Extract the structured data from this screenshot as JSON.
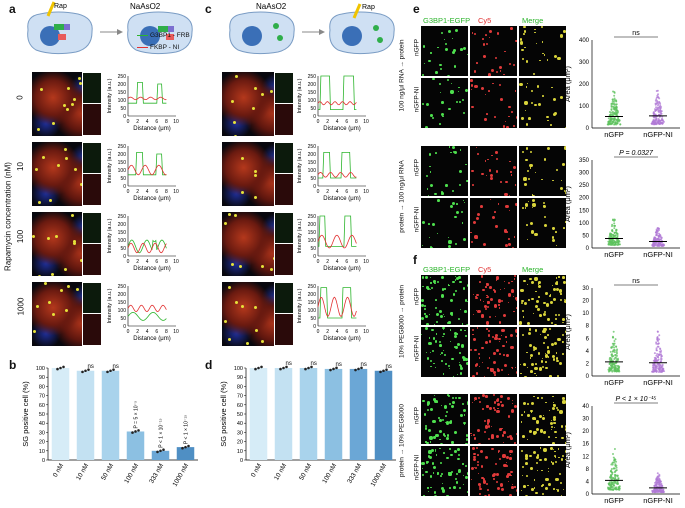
{
  "panels": {
    "a": "a",
    "b": "b",
    "c": "c",
    "d": "d",
    "e": "e",
    "f": "f"
  },
  "schematic": {
    "rap": "Rap",
    "naaso2_a": "NaAsO2",
    "naaso2_c": "NaAsO2",
    "legend_g3bp1": "G3BP1 - FRB",
    "legend_fkbp": "FKBP - NI"
  },
  "rapamycin_axis_label": "Rapamycin concentration (nM)",
  "row_labels": [
    "0",
    "10",
    "100",
    "1000"
  ],
  "profile": {
    "ylabel": "Intensity (a.u.)",
    "xlabel": "Distance (μm)",
    "yticks": [
      "0",
      "50",
      "100",
      "150",
      "200",
      "250"
    ],
    "xticks": [
      "0",
      "2",
      "4",
      "6",
      "8",
      "10"
    ],
    "colors": {
      "green": "#2db52d",
      "red": "#e23131"
    }
  },
  "bar_b": {
    "ylabel": "SG positive cell (%)",
    "categories": [
      "0 nM",
      "10 nM",
      "50 nM",
      "100 nM",
      "333 nM",
      "1000 nM"
    ],
    "values": [
      100,
      97,
      97,
      31,
      10,
      14
    ],
    "annotations": [
      "",
      "ns",
      "ns",
      "P = 5 × 10⁻⁵",
      "P < 1 × 10⁻¹⁵",
      "P < 1 × 10⁻¹⁵"
    ],
    "yticks": [
      "0",
      "10",
      "20",
      "30",
      "40",
      "50",
      "60",
      "70",
      "80",
      "90",
      "100"
    ],
    "colors": [
      "#d6ecf7",
      "#c3e1f2",
      "#a9d3ec",
      "#8cc0e2",
      "#6ba7d6",
      "#4f8fc4"
    ]
  },
  "bar_d": {
    "ylabel": "SG positive cell (%)",
    "categories": [
      "0 nM",
      "10 nM",
      "50 nM",
      "100 nM",
      "333 nM",
      "1000 nM"
    ],
    "values": [
      100,
      100,
      100,
      99,
      99,
      97
    ],
    "annotations": [
      "",
      "ns",
      "ns",
      "ns",
      "ns",
      "ns"
    ],
    "yticks": [
      "0",
      "10",
      "20",
      "30",
      "40",
      "50",
      "60",
      "70",
      "80",
      "90",
      "100"
    ],
    "colors": [
      "#d6ecf7",
      "#c3e1f2",
      "#a9d3ec",
      "#8cc0e2",
      "#6ba7d6",
      "#4f8fc4"
    ]
  },
  "channel_headers": {
    "g3bp1": "G3BP1-EGFP",
    "cy5": "Cy5",
    "merge": "Merge"
  },
  "conditions_e": [
    "100 ng/μl RNA → protein",
    "protein → 100 ng/μl RNA"
  ],
  "conditions_f": [
    "10% PEG8000 → protein",
    "protein → 10% PEG8000"
  ],
  "sample_labels": [
    "nGFP",
    "nGFP-NI"
  ],
  "scatter": {
    "ylabel": "Area (μm²)",
    "categories": [
      "nGFP",
      "nGFP-NI"
    ],
    "e1": {
      "yticks": [
        "0",
        "100",
        "200",
        "300",
        "400"
      ],
      "annotation": "ns",
      "means": [
        52,
        55
      ]
    },
    "e2": {
      "yticks": [
        "0",
        "50",
        "100",
        "150",
        "200",
        "250",
        "300",
        "350"
      ],
      "annotation": "P = 0.0327",
      "means": [
        38,
        26
      ]
    },
    "f1": {
      "yticks": [
        "0",
        "2",
        "4",
        "6",
        "8",
        "10",
        "20",
        "30"
      ],
      "annotation": "ns",
      "means": [
        4.8,
        4.5
      ]
    },
    "f2": {
      "yticks": [
        "0",
        "4",
        "8",
        "12",
        "16",
        "20",
        "30",
        "40"
      ],
      "annotation": "P < 1 × 10⁻¹⁵",
      "means": [
        6.2,
        2.8
      ]
    },
    "colors": {
      "nGFP": "#5ec25e",
      "nGFP-NI": "#b07ad6"
    }
  }
}
